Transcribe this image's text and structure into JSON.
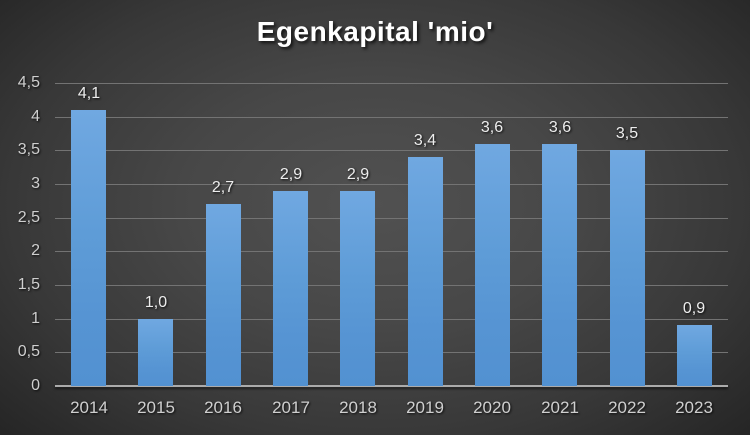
{
  "chart_data": {
    "type": "bar",
    "title": "Egenkapital 'mio'",
    "categories": [
      "2014",
      "2015",
      "2016",
      "2017",
      "2018",
      "2019",
      "2020",
      "2021",
      "2022",
      "2023"
    ],
    "values": [
      4.1,
      1.0,
      2.7,
      2.9,
      2.9,
      3.4,
      3.6,
      3.6,
      3.5,
      0.9
    ],
    "value_labels": [
      "4,1",
      "1,0",
      "2,7",
      "2,9",
      "2,9",
      "3,4",
      "3,6",
      "3,6",
      "3,5",
      "0,9"
    ],
    "xlabel": "",
    "ylabel": "",
    "y_axis": {
      "min": 0,
      "max": 4.5,
      "step": 0.5,
      "tick_labels_top_to_bottom": [
        "4,5",
        "4",
        "3,5",
        "3",
        "2,5",
        "2",
        "1,5",
        "1",
        "0,5",
        "0"
      ]
    },
    "grid": true,
    "legend_position": "none",
    "colors": {
      "bar_top": "#70A8E1",
      "bar_bottom": "#5291D1",
      "grid_line": "#737373",
      "axis_line": "#ABABAB",
      "tick_label": "#CFCFCF",
      "data_label": "#EDEDED",
      "title": "#FFFFFF",
      "background_center": "#515151",
      "background_edge": "#222222"
    }
  }
}
